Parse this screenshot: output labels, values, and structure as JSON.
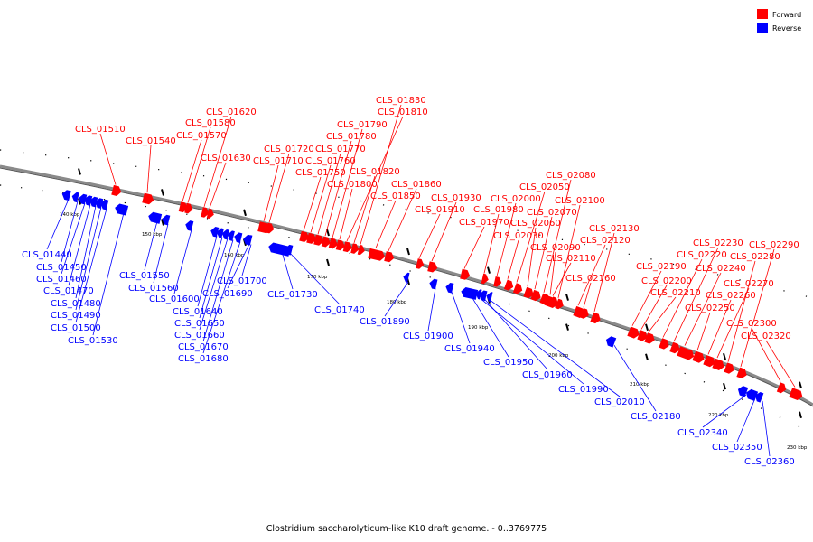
{
  "caption": "Clostridium saccharolyticum-like K10 draft genome. - 0..3769775",
  "legend": [
    {
      "label": "Forward",
      "color": "#ff0000"
    },
    {
      "label": "Reverse",
      "color": "#0000ff"
    }
  ],
  "colors": {
    "forward": "#ff0000",
    "reverse": "#0000ff",
    "backbone": "#808080"
  },
  "tick_labels": [
    "140 kbp",
    "150 kbp",
    "160 kbp",
    "170 kbp",
    "180 kbp",
    "190 kbp",
    "200 kbp",
    "210 kbp",
    "220 kbp",
    "230 kbp"
  ],
  "forward_genes": [
    "CLS_01510",
    "CLS_01540",
    "CLS_01570",
    "CLS_01580",
    "CLS_01620",
    "CLS_01630",
    "CLS_01710",
    "CLS_01720",
    "CLS_01750",
    "CLS_01760",
    "CLS_01770",
    "CLS_01780",
    "CLS_01790",
    "CLS_01800",
    "CLS_01810",
    "CLS_01820",
    "CLS_01830",
    "CLS_01850",
    "CLS_01860",
    "CLS_01910",
    "CLS_01930",
    "CLS_01970",
    "CLS_01980",
    "CLS_02000",
    "CLS_02030",
    "CLS_02050",
    "CLS_02060",
    "CLS_02070",
    "CLS_02080",
    "CLS_02090",
    "CLS_02100",
    "CLS_02110",
    "CLS_02120",
    "CLS_02130",
    "CLS_02160",
    "CLS_02190",
    "CLS_02200",
    "CLS_02210",
    "CLS_02220",
    "CLS_02230",
    "CLS_02240",
    "CLS_02250",
    "CLS_02260",
    "CLS_02270",
    "CLS_02280",
    "CLS_02290",
    "CLS_02300",
    "CLS_02320"
  ],
  "reverse_genes": [
    "CLS_01440",
    "CLS_01450",
    "CLS_01460",
    "CLS_01470",
    "CLS_01480",
    "CLS_01490",
    "CLS_01500",
    "CLS_01530",
    "CLS_01550",
    "CLS_01560",
    "CLS_01600",
    "CLS_01640",
    "CLS_01650",
    "CLS_01660",
    "CLS_01670",
    "CLS_01680",
    "CLS_01690",
    "CLS_01700",
    "CLS_01730",
    "CLS_01740",
    "CLS_01890",
    "CLS_01900",
    "CLS_01940",
    "CLS_01950",
    "CLS_01960",
    "CLS_01990",
    "CLS_02010",
    "CLS_02180",
    "CLS_02340",
    "CLS_02350",
    "CLS_02360"
  ]
}
